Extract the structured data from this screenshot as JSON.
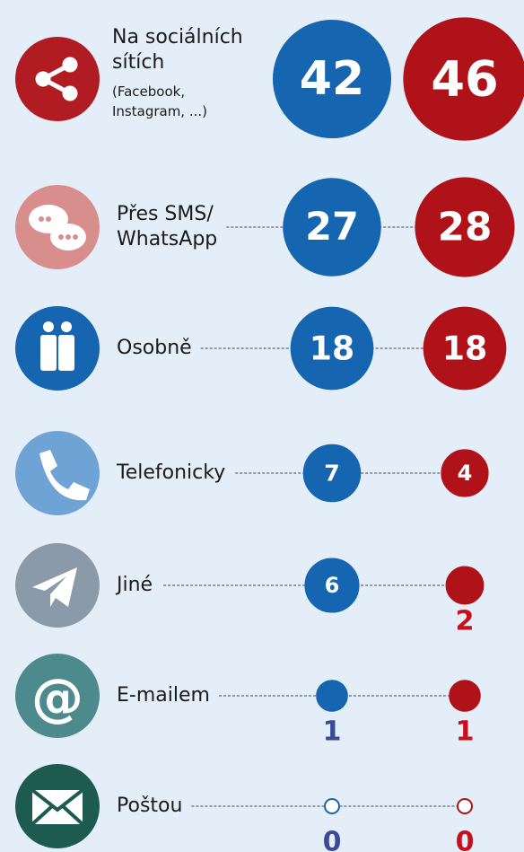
{
  "chart_data": {
    "type": "bubble",
    "categories": [
      "Na sociálních sítích",
      "Přes SMS/ WhatsApp",
      "Osobně",
      "Telefonicky",
      "Jiné",
      "E-mailem",
      "Poštou"
    ],
    "annotation": "(Facebook, Instagram, ...)",
    "series": [
      {
        "color": "#1565b0",
        "label_color": "#3b4a96",
        "values": [
          42,
          27,
          18,
          7,
          6,
          1,
          0
        ]
      },
      {
        "color": "#b0121a",
        "label_color": "#c8101c",
        "values": [
          46,
          28,
          18,
          4,
          2,
          1,
          0
        ]
      }
    ]
  }
}
